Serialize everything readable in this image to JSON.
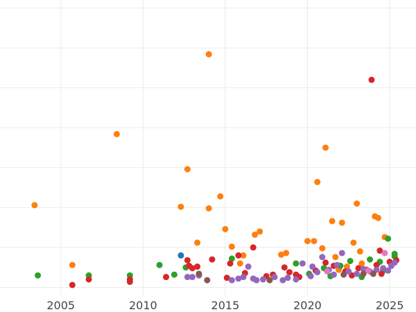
{
  "chart_data": {
    "type": "scatter",
    "title": "",
    "xlabel": "",
    "ylabel": "",
    "xlim": [
      2001.3,
      2026.6
    ],
    "ylim": [
      -1,
      36
    ],
    "x_ticks": [
      2005,
      2010,
      2015,
      2020,
      2025
    ],
    "x_tick_labels": [
      "2005",
      "2010",
      "2015",
      "2020",
      "2025"
    ],
    "y_gridlines": [
      0,
      5,
      10,
      15,
      20,
      25,
      30,
      35
    ],
    "grid": true,
    "legend": "none",
    "colors": {
      "blue": "#1f77b4",
      "orange": "#ff7f0e",
      "green": "#2ca02c",
      "red": "#d62728",
      "purple": "#9467bd",
      "brown": "#8c564b",
      "pink": "#e377c2"
    },
    "series": [
      {
        "color": "#ff7f0e",
        "points": [
          [
            2003.4,
            10.3
          ],
          [
            2005.7,
            2.8
          ],
          [
            2008.4,
            19.2
          ],
          [
            2012.3,
            10.1
          ],
          [
            2012.7,
            14.8
          ],
          [
            2013.3,
            5.6
          ],
          [
            2014.0,
            29.2
          ],
          [
            2014.0,
            9.9
          ],
          [
            2014.7,
            11.4
          ],
          [
            2015.0,
            7.3
          ],
          [
            2015.4,
            5.1
          ],
          [
            2015.9,
            3.0
          ],
          [
            2016.1,
            4.0
          ],
          [
            2016.8,
            6.6
          ],
          [
            2017.1,
            7.0
          ],
          [
            2018.4,
            4.1
          ],
          [
            2018.7,
            4.3
          ],
          [
            2020.0,
            5.8
          ],
          [
            2020.4,
            5.8
          ],
          [
            2020.6,
            13.2
          ],
          [
            2020.9,
            4.9
          ],
          [
            2021.1,
            17.5
          ],
          [
            2021.5,
            8.3
          ],
          [
            2021.7,
            3.8
          ],
          [
            2022.1,
            8.1
          ],
          [
            2022.8,
            5.6
          ],
          [
            2023.0,
            10.5
          ],
          [
            2023.2,
            4.5
          ],
          [
            2023.3,
            3.0
          ],
          [
            2024.1,
            8.9
          ],
          [
            2024.3,
            8.7
          ],
          [
            2024.7,
            6.3
          ],
          [
            2022.4,
            2.6
          ],
          [
            2021.9,
            2.2
          ]
        ]
      },
      {
        "color": "#2ca02c",
        "points": [
          [
            2003.6,
            1.5
          ],
          [
            2006.7,
            1.5
          ],
          [
            2009.2,
            1.5
          ],
          [
            2011.0,
            2.8
          ],
          [
            2011.9,
            1.6
          ],
          [
            2012.6,
            2.5
          ],
          [
            2015.4,
            3.6
          ],
          [
            2019.3,
            3.0
          ],
          [
            2020.1,
            1.7
          ],
          [
            2021.0,
            2.4
          ],
          [
            2021.4,
            1.4
          ],
          [
            2022.0,
            2.7
          ],
          [
            2022.6,
            3.3
          ],
          [
            2023.3,
            1.3
          ],
          [
            2023.8,
            3.5
          ],
          [
            2024.4,
            3.2
          ],
          [
            2024.9,
            6.1
          ],
          [
            2025.3,
            4.2
          ],
          [
            2025.3,
            3.9
          ],
          [
            2024.6,
            2.1
          ]
        ]
      },
      {
        "color": "#d62728",
        "points": [
          [
            2005.7,
            0.3
          ],
          [
            2006.7,
            1.0
          ],
          [
            2009.2,
            1.0
          ],
          [
            2009.2,
            0.7
          ],
          [
            2011.4,
            1.3
          ],
          [
            2012.7,
            3.4
          ],
          [
            2012.8,
            2.7
          ],
          [
            2013.0,
            2.4
          ],
          [
            2013.3,
            2.6
          ],
          [
            2014.2,
            3.5
          ],
          [
            2015.1,
            1.2
          ],
          [
            2015.3,
            3.0
          ],
          [
            2015.8,
            4.0
          ],
          [
            2016.2,
            1.8
          ],
          [
            2016.7,
            5.0
          ],
          [
            2017.5,
            1.4
          ],
          [
            2017.9,
            1.6
          ],
          [
            2018.6,
            2.5
          ],
          [
            2018.9,
            1.9
          ],
          [
            2019.3,
            1.6
          ],
          [
            2019.5,
            1.3
          ],
          [
            2020.5,
            2.1
          ],
          [
            2021.1,
            3.1
          ],
          [
            2021.6,
            2.7
          ],
          [
            2022.3,
            2.0
          ],
          [
            2022.7,
            1.5
          ],
          [
            2023.1,
            2.4
          ],
          [
            2023.6,
            2.2
          ],
          [
            2023.9,
            26.0
          ],
          [
            2024.2,
            2.8
          ],
          [
            2024.4,
            4.6
          ],
          [
            2024.5,
            1.7
          ],
          [
            2025.0,
            3.2
          ],
          [
            2025.4,
            3.4
          ]
        ]
      },
      {
        "color": "#9467bd",
        "points": [
          [
            2012.7,
            1.3
          ],
          [
            2013.0,
            1.3
          ],
          [
            2013.4,
            1.5
          ],
          [
            2015.4,
            0.9
          ],
          [
            2015.8,
            1.1
          ],
          [
            2016.1,
            1.3
          ],
          [
            2016.4,
            2.6
          ],
          [
            2016.7,
            1.1
          ],
          [
            2016.9,
            0.9
          ],
          [
            2017.3,
            1.0
          ],
          [
            2018.0,
            1.3
          ],
          [
            2018.5,
            0.9
          ],
          [
            2018.8,
            1.2
          ],
          [
            2019.3,
            1.0
          ],
          [
            2019.7,
            3.0
          ],
          [
            2020.3,
            2.6
          ],
          [
            2020.6,
            1.9
          ],
          [
            2020.9,
            3.8
          ],
          [
            2021.3,
            2.2
          ],
          [
            2021.6,
            1.6
          ],
          [
            2022.1,
            4.3
          ],
          [
            2022.5,
            2.0
          ],
          [
            2023.0,
            1.7
          ],
          [
            2023.4,
            2.3
          ],
          [
            2023.8,
            2.0
          ],
          [
            2024.2,
            2.2
          ],
          [
            2024.6,
            2.4
          ],
          [
            2024.9,
            2.1
          ],
          [
            2025.1,
            2.7
          ],
          [
            2025.3,
            3.1
          ],
          [
            2021.8,
            2.8
          ],
          [
            2020.2,
            1.4
          ]
        ]
      },
      {
        "color": "#1f77b4",
        "points": [
          [
            2012.3,
            4.0
          ]
        ]
      },
      {
        "color": "#8c564b",
        "points": [
          [
            2013.4,
            1.7
          ],
          [
            2013.9,
            0.9
          ],
          [
            2017.7,
            0.9
          ],
          [
            2022.2,
            1.6
          ],
          [
            2023.4,
            1.7
          ],
          [
            2024.0,
            1.7
          ]
        ]
      },
      {
        "color": "#e377c2",
        "points": [
          [
            2021.2,
            2.0
          ],
          [
            2023.7,
            2.1
          ],
          [
            2024.7,
            4.3
          ]
        ]
      }
    ]
  }
}
